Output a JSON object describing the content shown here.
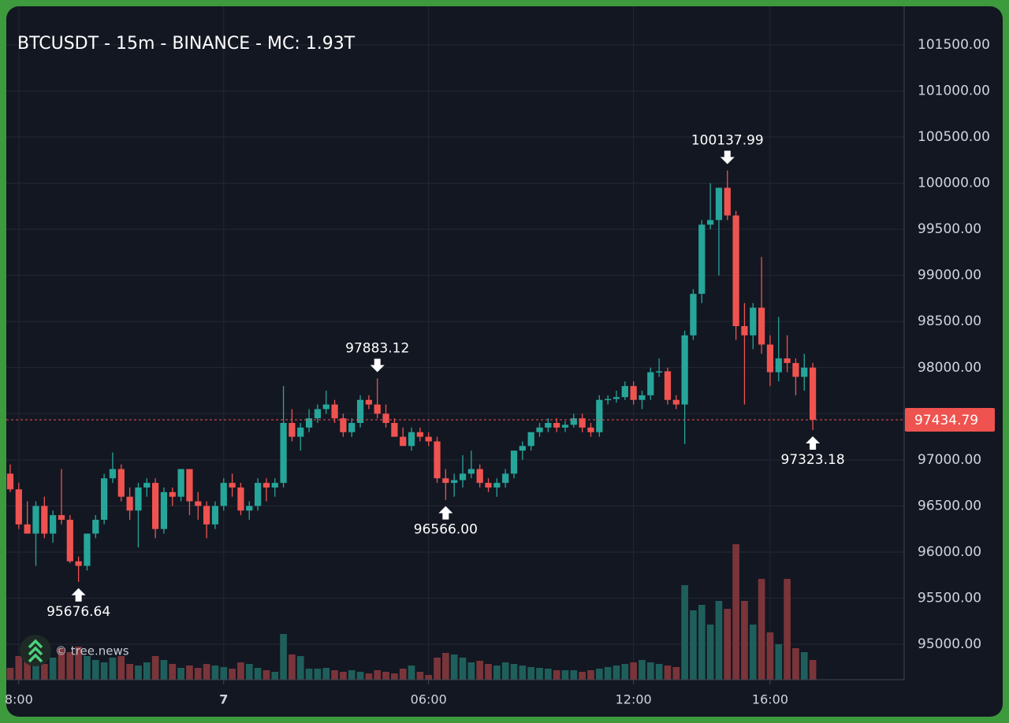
{
  "chart_data": {
    "type": "candlestick",
    "title": "BTCUSDT - 15m - BINANCE - MC: 1.93T",
    "watermark": "© tree.news",
    "candles": [
      [
        96850,
        96950,
        96650,
        96680
      ],
      [
        96680,
        96750,
        96250,
        96300
      ],
      [
        96300,
        96550,
        96200,
        96200
      ],
      [
        96200,
        96550,
        95850,
        96500
      ],
      [
        96500,
        96600,
        96150,
        96200
      ],
      [
        96200,
        96450,
        96100,
        96400
      ],
      [
        96400,
        96900,
        96300,
        96350
      ],
      [
        96350,
        96400,
        95880,
        95900
      ],
      [
        95900,
        95950,
        95676.64,
        95850
      ],
      [
        95850,
        96200,
        95800,
        96200
      ],
      [
        96200,
        96400,
        96150,
        96350
      ],
      [
        96350,
        96850,
        96300,
        96800
      ],
      [
        96800,
        97080,
        96750,
        96900
      ],
      [
        96900,
        96950,
        96550,
        96600
      ],
      [
        96600,
        96700,
        96350,
        96450
      ],
      [
        96450,
        96750,
        96050,
        96700
      ],
      [
        96700,
        96800,
        96600,
        96750
      ],
      [
        96750,
        96800,
        96150,
        96250
      ],
      [
        96250,
        96700,
        96200,
        96650
      ],
      [
        96650,
        96700,
        96500,
        96600
      ],
      [
        96600,
        96900,
        96550,
        96900
      ],
      [
        96900,
        96900,
        96400,
        96550
      ],
      [
        96550,
        96650,
        96350,
        96500
      ],
      [
        96500,
        96550,
        96150,
        96300
      ],
      [
        96300,
        96550,
        96250,
        96500
      ],
      [
        96500,
        96800,
        96450,
        96750
      ],
      [
        96750,
        96850,
        96600,
        96700
      ],
      [
        96700,
        96750,
        96400,
        96450
      ],
      [
        96450,
        96550,
        96350,
        96500
      ],
      [
        96500,
        96800,
        96450,
        96750
      ],
      [
        96750,
        96800,
        96550,
        96700
      ],
      [
        96700,
        96800,
        96600,
        96750
      ],
      [
        96750,
        97800,
        96700,
        97400
      ],
      [
        97400,
        97550,
        97200,
        97250
      ],
      [
        97250,
        97400,
        97100,
        97350
      ],
      [
        97350,
        97550,
        97300,
        97450
      ],
      [
        97450,
        97600,
        97400,
        97550
      ],
      [
        97550,
        97750,
        97500,
        97600
      ],
      [
        97600,
        97650,
        97400,
        97450
      ],
      [
        97450,
        97500,
        97250,
        97300
      ],
      [
        97300,
        97450,
        97250,
        97400
      ],
      [
        97400,
        97700,
        97350,
        97650
      ],
      [
        97650,
        97700,
        97550,
        97600
      ],
      [
        97600,
        97883.12,
        97450,
        97500
      ],
      [
        97500,
        97600,
        97350,
        97400
      ],
      [
        97400,
        97450,
        97250,
        97250
      ],
      [
        97250,
        97350,
        97150,
        97150
      ],
      [
        97150,
        97350,
        97100,
        97300
      ],
      [
        97300,
        97350,
        97200,
        97250
      ],
      [
        97250,
        97300,
        97150,
        97200
      ],
      [
        97200,
        97250,
        96750,
        96800
      ],
      [
        96800,
        96900,
        96566,
        96750
      ],
      [
        96750,
        96850,
        96600,
        96780
      ],
      [
        96780,
        97050,
        96700,
        96850
      ],
      [
        96850,
        97100,
        96800,
        96900
      ],
      [
        96900,
        96950,
        96700,
        96750
      ],
      [
        96750,
        96800,
        96650,
        96700
      ],
      [
        96700,
        96800,
        96600,
        96750
      ],
      [
        96750,
        96900,
        96700,
        96850
      ],
      [
        96850,
        97100,
        96800,
        97100
      ],
      [
        97100,
        97200,
        97000,
        97150
      ],
      [
        97150,
        97300,
        97100,
        97300
      ],
      [
        97300,
        97400,
        97250,
        97350
      ],
      [
        97350,
        97450,
        97300,
        97400
      ],
      [
        97400,
        97450,
        97300,
        97350
      ],
      [
        97350,
        97420,
        97300,
        97380
      ],
      [
        97380,
        97500,
        97350,
        97450
      ],
      [
        97450,
        97500,
        97300,
        97350
      ],
      [
        97350,
        97400,
        97250,
        97300
      ],
      [
        97300,
        97700,
        97250,
        97650
      ],
      [
        97650,
        97700,
        97600,
        97660
      ],
      [
        97660,
        97750,
        97620,
        97680
      ],
      [
        97680,
        97850,
        97650,
        97800
      ],
      [
        97800,
        97850,
        97600,
        97650
      ],
      [
        97650,
        97750,
        97550,
        97700
      ],
      [
        97700,
        98000,
        97650,
        97950
      ],
      [
        97950,
        98100,
        97900,
        97960
      ],
      [
        97960,
        98000,
        97600,
        97650
      ],
      [
        97650,
        97700,
        97550,
        97600
      ],
      [
        97600,
        98400,
        97170,
        98350
      ],
      [
        98350,
        98850,
        98300,
        98800
      ],
      [
        98800,
        99600,
        98700,
        99550
      ],
      [
        99550,
        100000,
        99500,
        99600
      ],
      [
        99600,
        99950,
        99000,
        99950
      ],
      [
        99950,
        100137.99,
        99600,
        99650
      ],
      [
        99650,
        99700,
        98300,
        98450
      ],
      [
        98450,
        98700,
        97600,
        98350
      ],
      [
        98350,
        98700,
        98200,
        98650
      ],
      [
        98650,
        99200,
        98150,
        98250
      ],
      [
        98250,
        98350,
        97800,
        97950
      ],
      [
        97950,
        98550,
        97850,
        98100
      ],
      [
        98100,
        98350,
        97950,
        98050
      ],
      [
        98050,
        98100,
        97700,
        97900
      ],
      [
        97900,
        98150,
        97750,
        98000
      ],
      [
        98000,
        98050,
        97323.18,
        97434.79
      ]
    ],
    "volume": [
      15,
      30,
      25,
      35,
      20,
      28,
      40,
      35,
      42,
      30,
      25,
      22,
      28,
      30,
      20,
      18,
      22,
      30,
      25,
      20,
      15,
      18,
      15,
      20,
      18,
      16,
      14,
      22,
      20,
      15,
      12,
      10,
      58,
      32,
      30,
      14,
      14,
      15,
      12,
      10,
      12,
      10,
      8,
      12,
      10,
      8,
      14,
      18,
      10,
      6,
      28,
      34,
      32,
      28,
      22,
      24,
      20,
      18,
      22,
      20,
      18,
      16,
      15,
      14,
      12,
      12,
      12,
      10,
      12,
      14,
      16,
      18,
      20,
      22,
      25,
      22,
      20,
      18,
      16,
      120,
      88,
      95,
      70,
      100,
      90,
      172,
      100,
      70,
      128,
      60,
      45,
      128,
      40,
      35,
      25
    ],
    "colors": {
      "up": "#26a69a",
      "down": "#ef5350",
      "volume_up": "#1f5f5b",
      "volume_down": "#7a353a"
    },
    "ylim": [
      94616,
      101918
    ],
    "yticks": [
      {
        "value": 95000,
        "label": "95000.00"
      },
      {
        "value": 95500,
        "label": "95500.00"
      },
      {
        "value": 96000,
        "label": "96000.00"
      },
      {
        "value": 96500,
        "label": "96500.00"
      },
      {
        "value": 97000,
        "label": "97000.00"
      },
      {
        "value": 97500,
        "label": "97500.00"
      },
      {
        "value": 98000,
        "label": "98000.00"
      },
      {
        "value": 98500,
        "label": "98500.00"
      },
      {
        "value": 99000,
        "label": "99000.00"
      },
      {
        "value": 99500,
        "label": "99500.00"
      },
      {
        "value": 100000,
        "label": "100000.00"
      },
      {
        "value": 100500,
        "label": "100500.00"
      },
      {
        "value": 101000,
        "label": "101000.00"
      },
      {
        "value": 101500,
        "label": "101500.00"
      }
    ],
    "xlim": [
      -0.46,
      104.7
    ],
    "xticks": [
      {
        "value": 1,
        "label": "8:00"
      },
      {
        "value": 25,
        "label": "7"
      },
      {
        "value": 49,
        "label": "06:00"
      },
      {
        "value": 73,
        "label": "12:00"
      },
      {
        "value": 89,
        "label": "16:00"
      }
    ],
    "last_price": 97434.79,
    "annotations": [
      95676.64,
      97883.12,
      {
        "value": 96566,
        "label": "96566.00"
      },
      100137.99,
      97323.18
    ],
    "grid": true
  }
}
